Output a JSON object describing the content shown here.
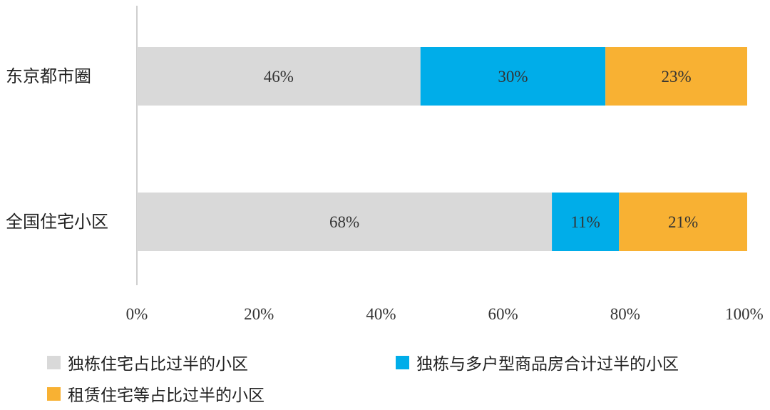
{
  "chart_data": {
    "type": "bar",
    "orientation": "horizontal",
    "stacked": true,
    "categories": [
      "东京都市圈",
      "全国住宅小区"
    ],
    "series": [
      {
        "name": "独栋住宅占比过半的小区",
        "values": [
          46,
          68
        ],
        "labels": [
          "46%",
          "68%"
        ],
        "color": "#d9d9d9"
      },
      {
        "name": "独栋与多户型商品房合计过半的小区",
        "values": [
          30,
          11
        ],
        "labels": [
          "30%",
          "11%"
        ],
        "color": "#00ade9"
      },
      {
        "name": "租赁住宅等占比过半的小区",
        "values": [
          23,
          21
        ],
        "labels": [
          "23%",
          "21%"
        ],
        "color": "#f8b133"
      }
    ],
    "xlim": [
      0,
      100
    ],
    "xticks": [
      "0%",
      "20%",
      "40%",
      "60%",
      "80%",
      "100%"
    ],
    "grid": false,
    "legend_position": "bottom"
  }
}
